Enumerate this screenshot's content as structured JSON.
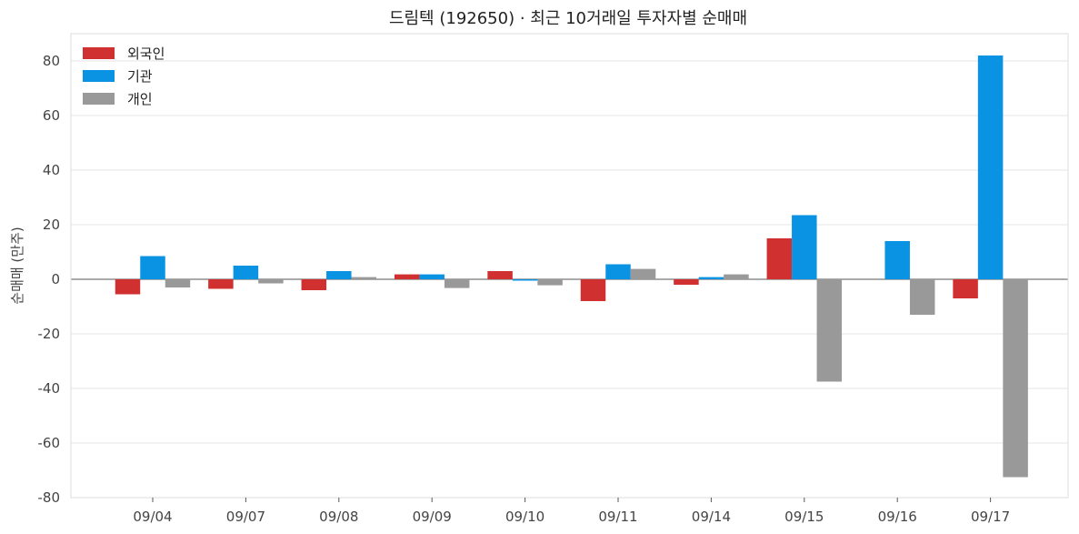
{
  "chart_data": {
    "type": "bar",
    "title": "드림텍 (192650) · 최근 10거래일 투자자별 순매매",
    "xlabel": "",
    "ylabel": "순매매 (만주)",
    "categories": [
      "09/04",
      "09/07",
      "09/08",
      "09/09",
      "09/10",
      "09/11",
      "09/14",
      "09/15",
      "09/16",
      "09/17"
    ],
    "series": [
      {
        "name": "외국인",
        "color": "#d03030",
        "values": [
          -5.5,
          -3.5,
          -4,
          1.8,
          3,
          -8,
          -2,
          15,
          0,
          -7
        ]
      },
      {
        "name": "기관",
        "color": "#0a93e2",
        "values": [
          8.5,
          5,
          3,
          1.8,
          -0.5,
          5.5,
          0.8,
          23.5,
          14,
          82
        ]
      },
      {
        "name": "개인",
        "color": "#999999",
        "values": [
          -3,
          -1.5,
          0.8,
          -3.2,
          -2.2,
          3.8,
          1.8,
          -37.5,
          -13,
          -72.5
        ]
      }
    ],
    "ylim": [
      -80,
      90
    ],
    "yticks": [
      -80,
      -60,
      -40,
      -20,
      0,
      20,
      40,
      60,
      80
    ],
    "grid": true,
    "legend_position": "top-left"
  }
}
